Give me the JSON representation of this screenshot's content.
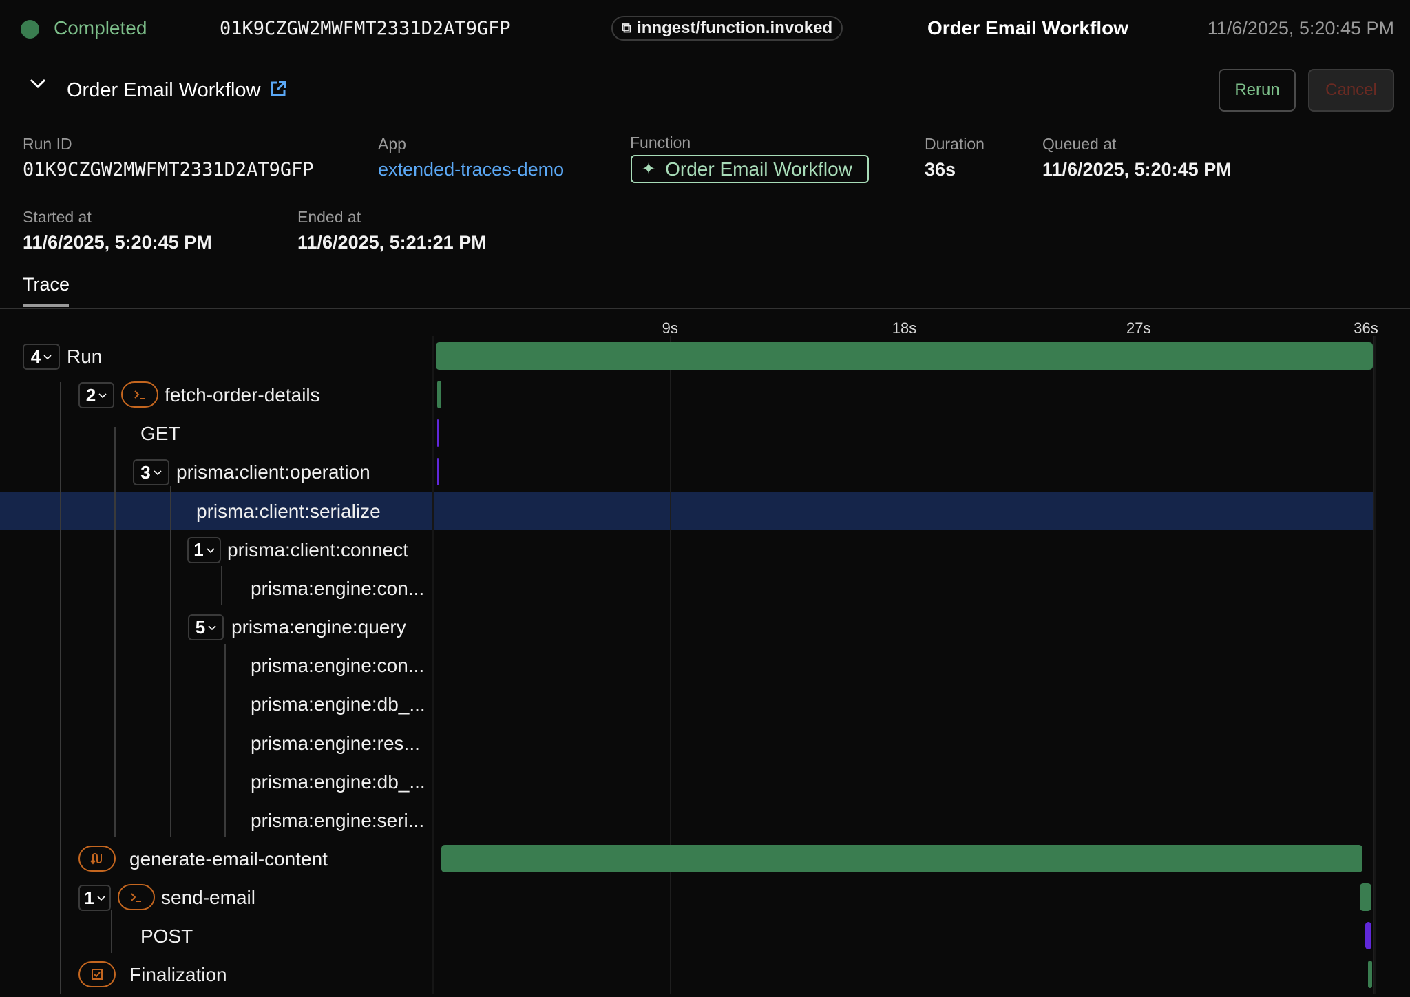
{
  "header": {
    "status": "Completed",
    "run_id": "01K9CZGW2MWFMT2331D2AT9GFP",
    "event_name": "inngest/function.invoked",
    "function_name": "Order Email Workflow",
    "timestamp": "11/6/2025, 5:20:45 PM"
  },
  "subheader": {
    "title": "Order Email Workflow",
    "rerun_label": "Rerun",
    "cancel_label": "Cancel"
  },
  "details": {
    "run_id_label": "Run ID",
    "run_id": "01K9CZGW2MWFMT2331D2AT9GFP",
    "app_label": "App",
    "app": "extended-traces-demo",
    "function_label": "Function",
    "function": "Order Email Workflow",
    "duration_label": "Duration",
    "duration": "36s",
    "queued_label": "Queued at",
    "queued": "11/6/2025, 5:20:45 PM",
    "started_label": "Started at",
    "started": "11/6/2025, 5:20:45 PM",
    "ended_label": "Ended at",
    "ended": "11/6/2025, 5:21:21 PM"
  },
  "tabs": [
    "Trace"
  ],
  "colors": {
    "bg": "#0a0a0a",
    "success": "#3a7d50",
    "http": "#6028d9",
    "selected": "#15254a",
    "step_icon": "#c4661f",
    "link": "#5ba8f5"
  },
  "timeline": {
    "max_seconds": 36,
    "ticks": [
      {
        "t": 9,
        "label": "9s"
      },
      {
        "t": 18,
        "label": "18s"
      },
      {
        "t": 27,
        "label": "27s"
      },
      {
        "t": 36,
        "label": "36s"
      }
    ]
  },
  "trace": [
    {
      "label": "Run",
      "count": "4",
      "icon": "",
      "start": 0,
      "end": 36,
      "color": "#3a7d50"
    },
    {
      "label": "fetch-order-details",
      "count": "2",
      "icon": "terminal-icon",
      "start": 0.05,
      "end": 0.2,
      "color": "#3a7d50"
    },
    {
      "label": "GET",
      "count": "",
      "icon": "",
      "start": 0.05,
      "end": 0.08,
      "color": "#6028d9"
    },
    {
      "label": "prisma:client:operation",
      "count": "3",
      "icon": "",
      "start": 0.05,
      "end": 0.1,
      "color": "#6028d9"
    },
    {
      "label": "prisma:client:serialize",
      "count": "",
      "icon": "",
      "start": null,
      "end": null,
      "color": "",
      "selected": true
    },
    {
      "label": "prisma:client:connect",
      "count": "1",
      "icon": "",
      "start": null,
      "end": null,
      "color": ""
    },
    {
      "label": "prisma:engine:con...",
      "count": "",
      "icon": "",
      "start": null,
      "end": null,
      "color": ""
    },
    {
      "label": "prisma:engine:query",
      "count": "5",
      "icon": "",
      "start": null,
      "end": null,
      "color": ""
    },
    {
      "label": "prisma:engine:con...",
      "count": "",
      "icon": "",
      "start": null,
      "end": null,
      "color": ""
    },
    {
      "label": "prisma:engine:db_...",
      "count": "",
      "icon": "",
      "start": null,
      "end": null,
      "color": ""
    },
    {
      "label": "prisma:engine:res...",
      "count": "",
      "icon": "",
      "start": null,
      "end": null,
      "color": ""
    },
    {
      "label": "prisma:engine:db_...",
      "count": "",
      "icon": "",
      "start": null,
      "end": null,
      "color": ""
    },
    {
      "label": "prisma:engine:seri...",
      "count": "",
      "icon": "",
      "start": null,
      "end": null,
      "color": ""
    },
    {
      "label": "generate-email-content",
      "count": "",
      "icon": "ai-flow-icon",
      "start": 0.2,
      "end": 35.6,
      "color": "#3a7d50"
    },
    {
      "label": "send-email",
      "count": "1",
      "icon": "terminal-icon",
      "start": 35.5,
      "end": 35.95,
      "color": "#3a7d50"
    },
    {
      "label": "POST",
      "count": "",
      "icon": "",
      "start": 35.7,
      "end": 35.95,
      "color": "#6028d9"
    },
    {
      "label": "Finalization",
      "count": "",
      "icon": "checkbox-icon",
      "start": 35.82,
      "end": 35.98,
      "color": "#3a7d50"
    }
  ]
}
